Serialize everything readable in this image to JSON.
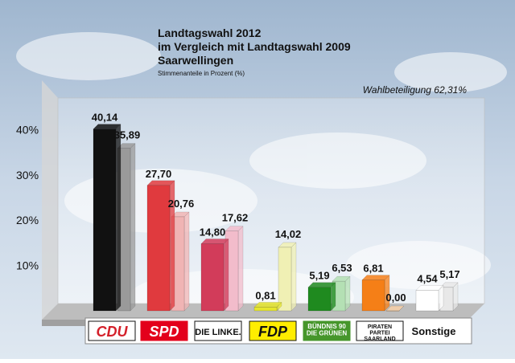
{
  "chart_data": {
    "type": "bar",
    "title_lines": [
      "Landtagswahl 2012",
      "im Vergleich mit Landtagswahl 2009",
      "Saarwellingen"
    ],
    "subtitle": "Stimmenanteile in Prozent (%)",
    "annotation": "Wahlbeteiligung 62,31%",
    "y_tick_labels": [
      "10%",
      "20%",
      "30%",
      "40%"
    ],
    "y_ticks": [
      10,
      20,
      30,
      40
    ],
    "ylim": [
      0,
      47
    ],
    "categories": [
      "CDU",
      "SPD",
      "DIE LINKE.",
      "FDP",
      "BÜNDNIS 90 DIE GRÜNEN",
      "PIRATEN PARTEI SAARLAND",
      "Sonstige"
    ],
    "series": [
      {
        "name": "",
        "values": [
          40.14,
          27.7,
          14.8,
          0.81,
          5.19,
          6.81,
          4.54
        ],
        "labels": [
          "40,14",
          "27,70",
          "14,80",
          "0,81",
          "5,19",
          "6,81",
          "4,54"
        ]
      },
      {
        "name": "",
        "values": [
          35.89,
          20.76,
          17.62,
          14.02,
          6.53,
          0.0,
          5.17
        ],
        "labels": [
          "35,89",
          "20,76",
          "17,62",
          "14,02",
          "6,53",
          "0,00",
          "5,17"
        ]
      }
    ],
    "colors_2012": [
      "#111111",
      "#e03a3e",
      "#d23c5a",
      "#e6e62e",
      "#1f8a1f",
      "#f57f17",
      "#ffffff"
    ],
    "colors_2009": [
      "#9a9a9a",
      "#f0b4b4",
      "#f2bccb",
      "#f0f0b4",
      "#b4e0b4",
      "#f7d0a8",
      "#e8e8e8"
    ],
    "logos": [
      {
        "text": "CDU",
        "bg": "#ffffff",
        "fg": "#d4202a",
        "border": "#111111"
      },
      {
        "text": "SPD",
        "bg": "#e3001b",
        "fg": "#ffffff",
        "border": "#e3001b"
      },
      {
        "text": "DIE LINKE.",
        "bg": "#ffffff",
        "fg": "#111111",
        "border": "#111111"
      },
      {
        "text": "FDP",
        "bg": "#ffed00",
        "fg": "#111111",
        "border": "#111111"
      },
      {
        "text_lines": [
          "BÜNDNIS 90",
          "DIE GRÜNEN"
        ],
        "bg": "#46962b",
        "fg": "#ffffff",
        "border": "#46962b"
      },
      {
        "text_lines": [
          "PIRATEN",
          "PARTEI",
          "SAARLAND"
        ],
        "bg": "#ffffff",
        "fg": "#111111",
        "border": "#111111"
      },
      {
        "text": "Sonstige",
        "bg": "none",
        "fg": "#111111",
        "border": "none"
      }
    ],
    "grid": false
  }
}
